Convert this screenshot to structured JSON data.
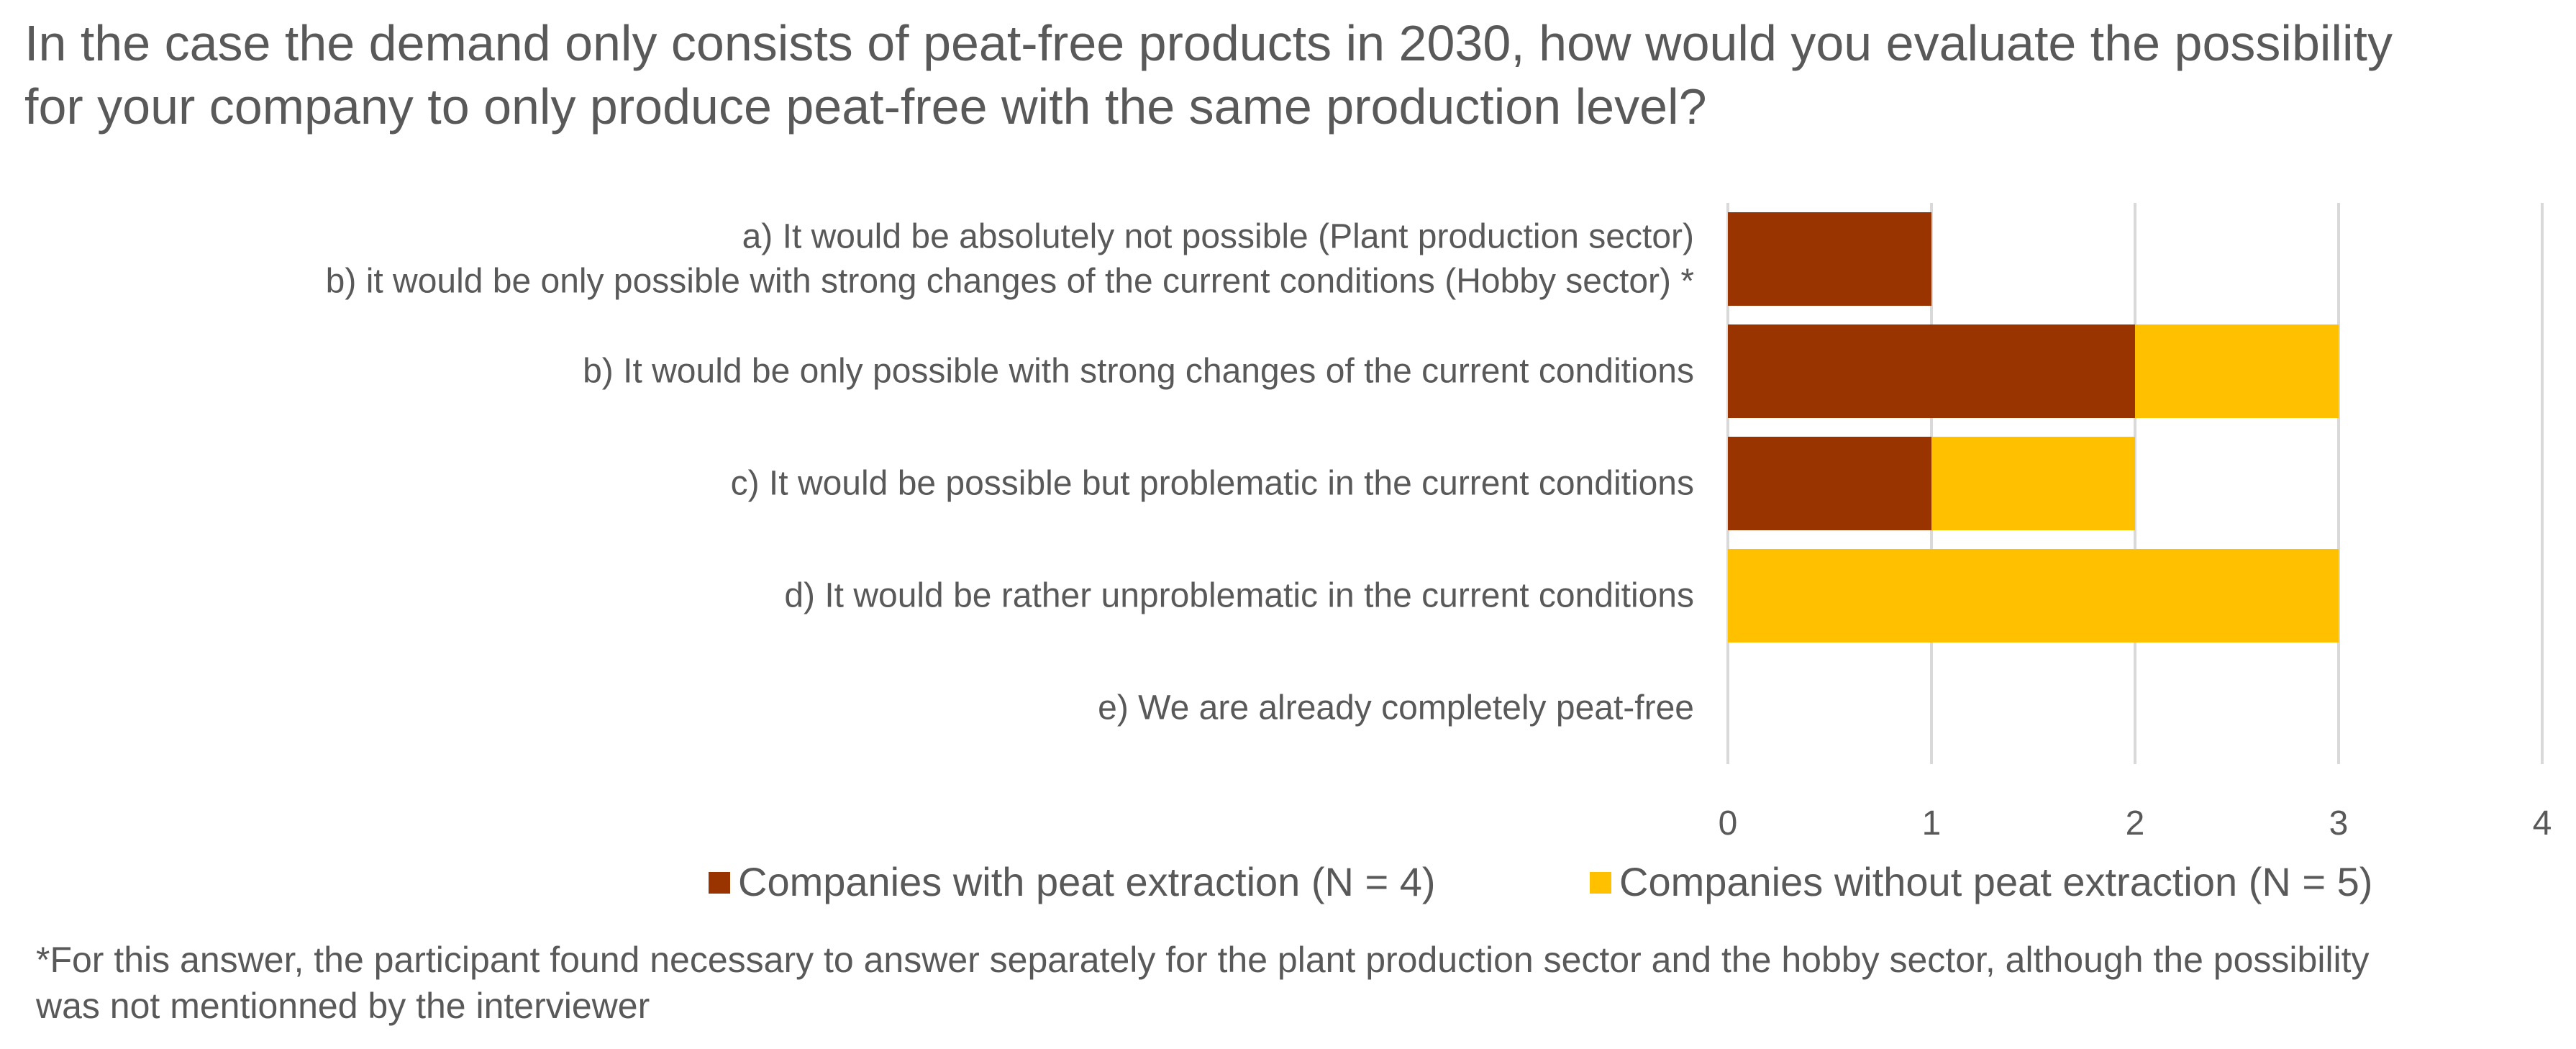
{
  "title": {
    "line1": "In the case the demand only consists of peat-free products in 2030, how would you evaluate the possibility",
    "line2": "for your company to only produce peat-free with the same production level?"
  },
  "chart_data": {
    "type": "bar",
    "orientation": "horizontal",
    "stacked": true,
    "categories": [
      [
        "a) It would be absolutely not possible (Plant production sector)",
        "b) it would be only possible with strong changes of the current conditions (Hobby sector) *"
      ],
      [
        "b) It would be only possible with strong changes of the current conditions"
      ],
      [
        "c) It would be possible but problematic in the current conditions"
      ],
      [
        "d) It would be rather unproblematic in the current conditions"
      ],
      [
        "e) We are already completely peat-free"
      ]
    ],
    "series": [
      {
        "name": "Companies with peat extraction (N = 4)",
        "color": "#993300",
        "values": [
          1,
          2,
          1,
          0,
          0
        ]
      },
      {
        "name": "Companies without peat extraction (N = 5)",
        "color": "#FFC000",
        "values": [
          0,
          1,
          1,
          3,
          0
        ]
      }
    ],
    "xlim": [
      0,
      4
    ],
    "xticks": [
      "0",
      "1",
      "2",
      "3",
      "4"
    ],
    "grid": true,
    "gridline_color": "#D9D9D9",
    "legend_position": "bottom"
  },
  "footnote": {
    "line1": "*For this answer, the participant found necessary to answer separately for the plant production sector and the hobby sector, although the possibility",
    "line2": "was not mentionned by the interviewer"
  }
}
